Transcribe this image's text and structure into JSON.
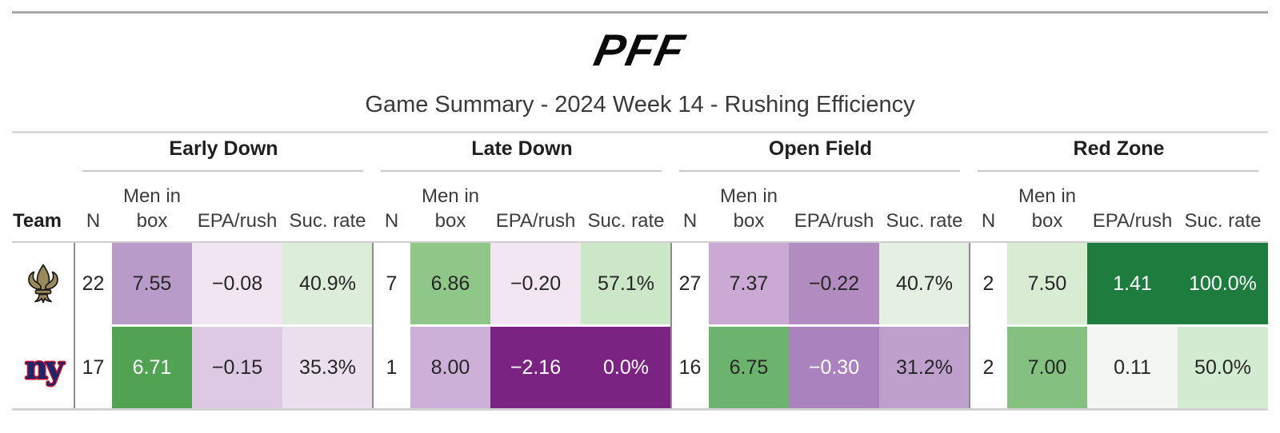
{
  "brand": {
    "logo_text": "PFF"
  },
  "title": "Game Summary - 2024 Week 14 - Rushing Efficiency",
  "table": {
    "team_header": "Team",
    "group_headers": [
      "Early Down",
      "Late Down",
      "Open Field",
      "Red Zone"
    ],
    "column_headers": {
      "n": "N",
      "men_in_box": "Men in box",
      "epa": "EPA/rush",
      "suc": "Suc. rate"
    },
    "rows": [
      {
        "logo_key": "saints",
        "logo": "saints-fleur-de-lis-logo",
        "groups": [
          {
            "n": "22",
            "box": {
              "value": "7.55",
              "bg": "#b89bc8",
              "fg": "#262626"
            },
            "epa": {
              "value": "−0.08",
              "bg": "#f1e5f2",
              "fg": "#262626"
            },
            "suc": {
              "value": "40.9%",
              "bg": "#dcedd9",
              "fg": "#262626"
            }
          },
          {
            "n": "7",
            "box": {
              "value": "6.86",
              "bg": "#8fc789",
              "fg": "#262626"
            },
            "epa": {
              "value": "−0.20",
              "bg": "#f1e6f1",
              "fg": "#262626"
            },
            "suc": {
              "value": "57.1%",
              "bg": "#cce7c7",
              "fg": "#262626"
            }
          },
          {
            "n": "27",
            "box": {
              "value": "7.37",
              "bg": "#caa9d4",
              "fg": "#262626"
            },
            "epa": {
              "value": "−0.22",
              "bg": "#b28cc1",
              "fg": "#262626"
            },
            "suc": {
              "value": "40.7%",
              "bg": "#e4f0e1",
              "fg": "#262626"
            }
          },
          {
            "n": "2",
            "box": {
              "value": "7.50",
              "bg": "#d8ebd3",
              "fg": "#262626"
            },
            "epa": {
              "value": "1.41",
              "bg": "#1d7c3e",
              "fg": "#ffffff"
            },
            "suc": {
              "value": "100.0%",
              "bg": "#1d7c3e",
              "fg": "#ffffff"
            }
          }
        ]
      },
      {
        "logo_key": "giants",
        "logo": "giants-ny-logo",
        "logo_text": "ny",
        "groups": [
          {
            "n": "17",
            "box": {
              "value": "6.71",
              "bg": "#52a254",
              "fg": "#ffffff"
            },
            "epa": {
              "value": "−0.15",
              "bg": "#dec9e4",
              "fg": "#262626"
            },
            "suc": {
              "value": "35.3%",
              "bg": "#ebdfee",
              "fg": "#262626"
            }
          },
          {
            "n": "1",
            "box": {
              "value": "8.00",
              "bg": "#ccb0d8",
              "fg": "#262626"
            },
            "epa": {
              "value": "−2.16",
              "bg": "#7b2383",
              "fg": "#ffffff"
            },
            "suc": {
              "value": "0.0%",
              "bg": "#7b2383",
              "fg": "#ffffff"
            }
          },
          {
            "n": "16",
            "box": {
              "value": "6.75",
              "bg": "#6cb36d",
              "fg": "#262626"
            },
            "epa": {
              "value": "−0.30",
              "bg": "#a982be",
              "fg": "#ffffff"
            },
            "suc": {
              "value": "31.2%",
              "bg": "#bf9fcb",
              "fg": "#262626"
            }
          },
          {
            "n": "2",
            "box": {
              "value": "7.00",
              "bg": "#84c07f",
              "fg": "#262626"
            },
            "epa": {
              "value": "0.11",
              "bg": "#f4f6f3",
              "fg": "#262626"
            },
            "suc": {
              "value": "50.0%",
              "bg": "#d3ebd0",
              "fg": "#262626"
            }
          }
        ]
      }
    ]
  },
  "chart_data": {
    "type": "table",
    "title": "Game Summary - 2024 Week 14 - Rushing Efficiency",
    "column_groups": [
      "Early Down",
      "Late Down",
      "Open Field",
      "Red Zone"
    ],
    "columns_per_group": [
      "N",
      "Men in box",
      "EPA/rush",
      "Suc. rate"
    ],
    "rows": [
      {
        "team": "New Orleans Saints",
        "early_down": {
          "n": 22,
          "men_in_box": 7.55,
          "epa_per_rush": -0.08,
          "success_rate_pct": 40.9
        },
        "late_down": {
          "n": 7,
          "men_in_box": 6.86,
          "epa_per_rush": -0.2,
          "success_rate_pct": 57.1
        },
        "open_field": {
          "n": 27,
          "men_in_box": 7.37,
          "epa_per_rush": -0.22,
          "success_rate_pct": 40.7
        },
        "red_zone": {
          "n": 2,
          "men_in_box": 7.5,
          "epa_per_rush": 1.41,
          "success_rate_pct": 100.0
        }
      },
      {
        "team": "New York Giants",
        "early_down": {
          "n": 17,
          "men_in_box": 6.71,
          "epa_per_rush": -0.15,
          "success_rate_pct": 35.3
        },
        "late_down": {
          "n": 1,
          "men_in_box": 8.0,
          "epa_per_rush": -2.16,
          "success_rate_pct": 0.0
        },
        "open_field": {
          "n": 16,
          "men_in_box": 6.75,
          "epa_per_rush": -0.3,
          "success_rate_pct": 31.2
        },
        "red_zone": {
          "n": 2,
          "men_in_box": 7.0,
          "epa_per_rush": 0.11,
          "success_rate_pct": 50.0
        }
      }
    ],
    "legend_colors": {
      "good_dark_green": "#1d7c3e",
      "bad_dark_purple": "#7b2383"
    }
  }
}
